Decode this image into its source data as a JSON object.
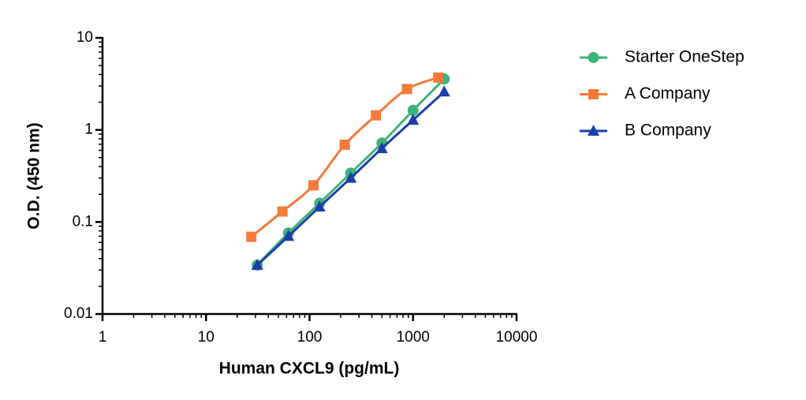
{
  "chart_data": {
    "type": "line",
    "xlabel": "Human CXCL9 (pg/mL)",
    "ylabel": "O.D. (450 nm)",
    "xscale": "log",
    "yscale": "log",
    "xlim": [
      1,
      10000
    ],
    "xticks": [
      1,
      10,
      100,
      1000,
      10000
    ],
    "ylim": [
      0.01,
      10
    ],
    "yticks": [
      0.01,
      0.1,
      1,
      10
    ],
    "minor_ticks": true,
    "legend": "outside-right",
    "series": [
      {
        "name": "Starter OneStep",
        "color": "#3cb37a",
        "marker": "circle",
        "x": [
          31.25,
          62.5,
          125,
          250,
          500,
          1000,
          2000
        ],
        "values": [
          0.034,
          0.076,
          0.16,
          0.34,
          0.72,
          1.63,
          3.58
        ]
      },
      {
        "name": "A Company",
        "color": "#f47a3a",
        "marker": "square",
        "x": [
          27.4,
          54.7,
          109,
          219,
          438,
          875,
          1750
        ],
        "values": [
          0.069,
          0.13,
          0.25,
          0.69,
          1.44,
          2.78,
          3.7
        ]
      },
      {
        "name": "B Company",
        "color": "#1a3fa8",
        "marker": "triangle",
        "x": [
          31.25,
          62.5,
          125,
          250,
          500,
          1000,
          2000
        ],
        "values": [
          0.034,
          0.07,
          0.146,
          0.3,
          0.63,
          1.28,
          2.6
        ]
      }
    ]
  }
}
